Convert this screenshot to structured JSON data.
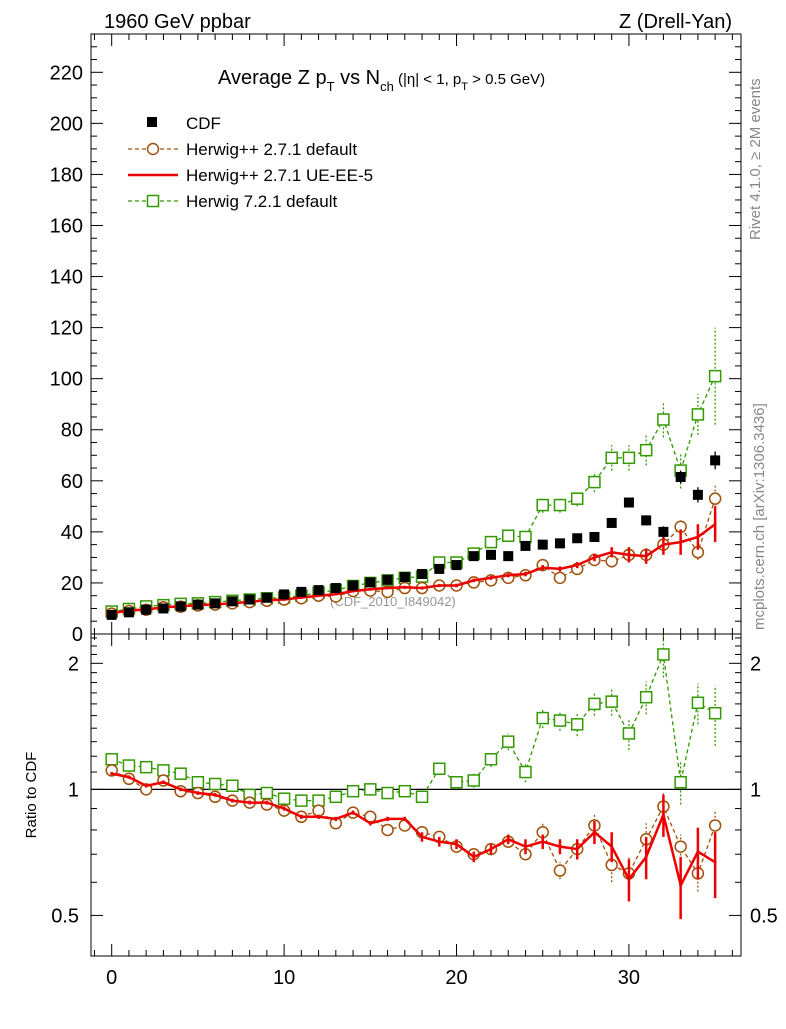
{
  "header": {
    "left": "1960 GeV ppbar",
    "right": "Z (Drell-Yan)"
  },
  "side_labels": {
    "rivet": "Rivet 4.1.0, ≥ 2M events",
    "mcplots": "mcplots.cern.ch [arXiv:1306.3436]"
  },
  "chart_data": [
    {
      "panel": "main",
      "type": "scatter",
      "title_parts": {
        "a": "Average Z p",
        "a_sub": "T",
        "b": " vs N",
        "b_sub": "ch",
        "c": " (|η| < 1, p",
        "c_sub": "T",
        "d": " > 0.5 GeV)"
      },
      "watermark": "(CDF_2010_I849042)",
      "xlim": [
        -1.2,
        36.5
      ],
      "ylim": [
        0,
        235
      ],
      "yticks": [
        0,
        20,
        40,
        60,
        80,
        100,
        120,
        140,
        160,
        180,
        200,
        220
      ],
      "xticks": [
        0,
        10,
        20,
        30
      ],
      "x": [
        0,
        1,
        2,
        3,
        4,
        5,
        6,
        7,
        8,
        9,
        10,
        11,
        12,
        13,
        14,
        15,
        16,
        17,
        18,
        19,
        20,
        21,
        22,
        23,
        24,
        25,
        26,
        27,
        28,
        29,
        30,
        31,
        32,
        33,
        34,
        35
      ],
      "series": [
        {
          "name": "CDF",
          "style": "data",
          "color": "#000000",
          "values": [
            7.5,
            8.5,
            9.5,
            10,
            10.8,
            11.5,
            12,
            12.8,
            13.5,
            14.2,
            15.5,
            16.5,
            17.2,
            18,
            19,
            20.2,
            21.2,
            22.3,
            23.5,
            25.5,
            27,
            30.5,
            31,
            30.5,
            34.5,
            35,
            35.5,
            37.5,
            38,
            43.5,
            51.5,
            44.5,
            40,
            61.5,
            54.5,
            68
          ],
          "errors": [
            0.3,
            0.3,
            0.3,
            0.3,
            0.3,
            0.3,
            0.3,
            0.3,
            0.3,
            0.3,
            0.4,
            0.4,
            0.4,
            0.4,
            0.5,
            0.5,
            0.5,
            0.5,
            0.6,
            0.6,
            0.7,
            0.8,
            0.8,
            0.9,
            1,
            1,
            1.1,
            1.2,
            1.3,
            1.5,
            1.8,
            2,
            2.2,
            2.5,
            3,
            3.5
          ]
        },
        {
          "name": "Herwig++ 2.7.1 default",
          "style": "circle",
          "color": "#a0500a",
          "values": [
            8,
            9,
            9.5,
            10.5,
            10.7,
            11.2,
            11.5,
            12,
            12.5,
            13,
            13.5,
            14,
            15,
            14.7,
            16.8,
            17,
            16.5,
            18,
            18,
            19,
            19,
            20.2,
            21,
            22,
            23,
            27,
            22,
            25.5,
            29,
            28.5,
            31,
            31,
            35,
            42,
            32,
            53
          ],
          "errors": [
            0.3,
            0.3,
            0.3,
            0.3,
            0.4,
            0.4,
            0.4,
            0.4,
            0.4,
            0.4,
            0.4,
            0.4,
            0.4,
            0.4,
            0.5,
            0.5,
            0.5,
            0.5,
            0.5,
            0.6,
            0.6,
            0.6,
            0.7,
            0.8,
            0.8,
            1.5,
            1.2,
            1.5,
            2,
            2.5,
            2.5,
            2.5,
            3.5,
            3,
            3,
            5
          ]
        },
        {
          "name": "Herwig++ 2.7.1 UE-EE-5",
          "style": "line",
          "color": "#ee0000",
          "values": [
            8.2,
            9.2,
            9.6,
            10.4,
            10.9,
            11.3,
            11.6,
            12,
            12.6,
            13.2,
            13.5,
            14.3,
            15,
            15.6,
            16.8,
            17.5,
            18,
            18.3,
            18,
            19,
            19,
            21,
            22,
            23,
            23.5,
            26,
            25.5,
            27,
            30,
            32,
            31,
            30.5,
            35,
            36,
            38,
            43
          ],
          "errors": [
            0.3,
            0.3,
            0.3,
            0.3,
            0.3,
            0.3,
            0.3,
            0.4,
            0.4,
            0.4,
            0.4,
            0.4,
            0.4,
            0.5,
            0.5,
            0.5,
            0.5,
            0.6,
            0.6,
            0.6,
            0.7,
            0.7,
            0.8,
            0.8,
            0.9,
            1,
            1,
            1.2,
            1.5,
            2,
            3,
            3,
            4,
            5,
            5,
            7
          ]
        },
        {
          "name": "Herwig 7.2.1 default",
          "style": "square",
          "color": "#339900",
          "values": [
            8.8,
            9.8,
            10.8,
            11.3,
            11.8,
            12,
            12.5,
            13,
            13.5,
            14,
            14.3,
            15,
            16.2,
            17.2,
            18.8,
            20,
            21,
            22,
            22.5,
            28,
            28,
            31.5,
            36,
            38.5,
            38,
            50.5,
            50.5,
            53,
            59.5,
            69,
            69,
            72,
            84,
            64,
            86,
            101
          ],
          "errors": [
            0.3,
            0.3,
            0.3,
            0.3,
            0.3,
            0.3,
            0.4,
            0.4,
            0.4,
            0.4,
            0.4,
            0.4,
            0.5,
            0.5,
            0.5,
            0.6,
            0.6,
            0.6,
            0.7,
            0.8,
            0.8,
            1,
            1.2,
            1.5,
            2,
            3,
            3,
            3,
            4,
            5,
            5,
            6,
            7,
            7,
            8,
            19
          ]
        }
      ]
    },
    {
      "panel": "ratio",
      "type": "scatter",
      "ylabel": "Ratio to CDF",
      "yscale": "log",
      "ylim": [
        0.4,
        2.35
      ],
      "ytick_labels": [
        "0.5",
        "1",
        "2"
      ],
      "xticks": [
        0,
        10,
        20,
        30
      ],
      "reference": 1,
      "series": [
        {
          "name": "Herwig++ 2.7.1 default",
          "values": [
            1.11,
            1.06,
            1.0,
            1.05,
            0.99,
            0.98,
            0.96,
            0.94,
            0.93,
            0.92,
            0.89,
            0.86,
            0.89,
            0.83,
            0.88,
            0.86,
            0.8,
            0.82,
            0.79,
            0.77,
            0.73,
            0.7,
            0.72,
            0.75,
            0.7,
            0.79,
            0.64,
            0.72,
            0.82,
            0.66,
            0.63,
            0.76,
            0.91,
            0.73,
            0.63,
            0.82
          ],
          "errors": [
            0.01,
            0.01,
            0.01,
            0.01,
            0.01,
            0.01,
            0.01,
            0.01,
            0.01,
            0.01,
            0.01,
            0.01,
            0.01,
            0.01,
            0.01,
            0.01,
            0.01,
            0.01,
            0.01,
            0.01,
            0.02,
            0.02,
            0.02,
            0.02,
            0.02,
            0.04,
            0.03,
            0.04,
            0.05,
            0.06,
            0.06,
            0.07,
            0.08,
            0.05,
            0.06,
            0.07
          ]
        },
        {
          "name": "Herwig++ 2.7.1 UE-EE-5",
          "values": [
            1.09,
            1.07,
            1.02,
            1.04,
            1.0,
            0.98,
            0.97,
            0.94,
            0.93,
            0.93,
            0.9,
            0.86,
            0.86,
            0.85,
            0.88,
            0.83,
            0.85,
            0.85,
            0.77,
            0.75,
            0.74,
            0.69,
            0.72,
            0.76,
            0.73,
            0.75,
            0.73,
            0.72,
            0.79,
            0.73,
            0.61,
            0.69,
            0.87,
            0.59,
            0.71,
            0.67
          ],
          "errors": [
            0.01,
            0.01,
            0.01,
            0.01,
            0.01,
            0.01,
            0.01,
            0.01,
            0.01,
            0.01,
            0.01,
            0.01,
            0.01,
            0.01,
            0.01,
            0.01,
            0.01,
            0.01,
            0.02,
            0.02,
            0.02,
            0.02,
            0.02,
            0.02,
            0.03,
            0.03,
            0.03,
            0.04,
            0.05,
            0.06,
            0.07,
            0.08,
            0.1,
            0.1,
            0.1,
            0.12
          ]
        },
        {
          "name": "Herwig 7.2.1 default",
          "values": [
            1.18,
            1.14,
            1.13,
            1.11,
            1.09,
            1.04,
            1.03,
            1.02,
            0.97,
            0.98,
            0.95,
            0.94,
            0.94,
            0.96,
            0.99,
            1.0,
            0.98,
            0.99,
            0.96,
            1.12,
            1.04,
            1.05,
            1.18,
            1.3,
            1.1,
            1.48,
            1.46,
            1.43,
            1.6,
            1.62,
            1.36,
            1.66,
            2.1,
            1.04,
            1.61,
            1.52
          ],
          "errors": [
            0.02,
            0.02,
            0.02,
            0.02,
            0.02,
            0.02,
            0.02,
            0.02,
            0.02,
            0.02,
            0.02,
            0.02,
            0.02,
            0.02,
            0.02,
            0.02,
            0.02,
            0.02,
            0.03,
            0.03,
            0.03,
            0.04,
            0.05,
            0.06,
            0.06,
            0.08,
            0.08,
            0.09,
            0.1,
            0.12,
            0.12,
            0.15,
            0.25,
            0.12,
            0.18,
            0.25
          ]
        }
      ]
    }
  ]
}
